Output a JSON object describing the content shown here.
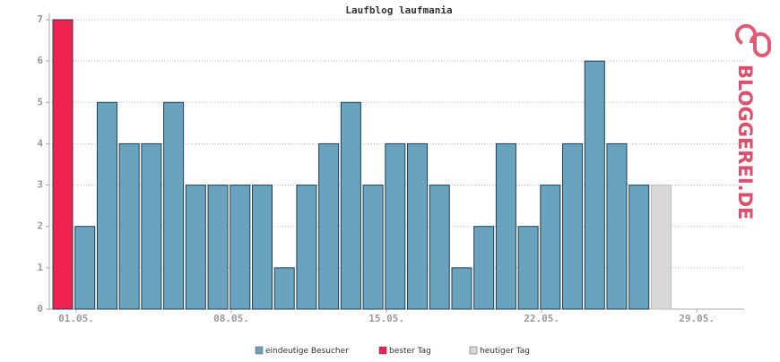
{
  "chart_data": {
    "type": "bar",
    "title": "Laufblog laufmania",
    "logo": "BLOGGEREI.DE",
    "categories": [
      "01.05.",
      null,
      null,
      null,
      null,
      null,
      null,
      "08.05.",
      null,
      null,
      null,
      null,
      null,
      null,
      "15.05.",
      null,
      null,
      null,
      null,
      null,
      null,
      "22.05.",
      null,
      null,
      null,
      null,
      null,
      null,
      "29.05.",
      null,
      null
    ],
    "series": [
      {
        "name": "eindeutige Besucher",
        "color": "#6aa3bd",
        "values": [
          null,
          2,
          5,
          4,
          4,
          5,
          3,
          3,
          3,
          3,
          1,
          3,
          4,
          5,
          3,
          4,
          4,
          3,
          1,
          2,
          4,
          2,
          3,
          4,
          6,
          4,
          3,
          null,
          null,
          null,
          null
        ]
      },
      {
        "name": "bester Tag",
        "color": "#f0214f",
        "values": [
          7,
          null,
          null,
          null,
          null,
          null,
          null,
          null,
          null,
          null,
          null,
          null,
          null,
          null,
          null,
          null,
          null,
          null,
          null,
          null,
          null,
          null,
          null,
          null,
          null,
          null,
          null,
          null,
          null,
          null,
          null
        ]
      },
      {
        "name": "heutiger Tag",
        "color": "#d8d8d8",
        "values": [
          null,
          null,
          null,
          null,
          null,
          null,
          null,
          null,
          null,
          null,
          null,
          null,
          null,
          null,
          null,
          null,
          null,
          null,
          null,
          null,
          null,
          null,
          null,
          null,
          null,
          null,
          null,
          3,
          null,
          null,
          null
        ]
      }
    ],
    "ylim": [
      0,
      7
    ],
    "yticks": [
      0,
      1,
      2,
      3,
      4,
      5,
      6,
      7
    ],
    "grid": true
  }
}
